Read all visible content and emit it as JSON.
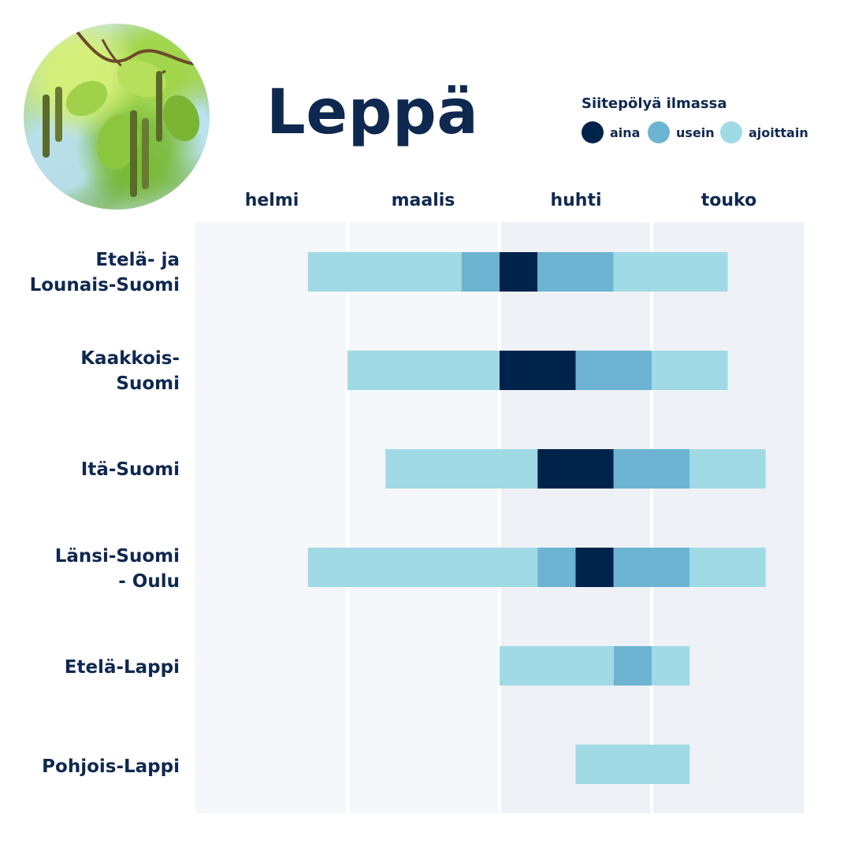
{
  "title": "Leppä",
  "image": {
    "description_icon": "alder-catkins-photo"
  },
  "legend": {
    "title": "Siitepölyä ilmassa",
    "items": [
      {
        "label": "aina",
        "color": "#00234b"
      },
      {
        "label": "usein",
        "color": "#6cb4d2"
      },
      {
        "label": "ajoittain",
        "color": "#a0dae5"
      }
    ]
  },
  "colors": {
    "aina": "#00234b",
    "usein": "#6cb4d2",
    "ajoittain": "#a0dae5",
    "band_light": "#f5f7fa",
    "band_dark": "#eef1f6",
    "text": "#0f2850"
  },
  "chart_data": {
    "type": "bar",
    "subtype": "timeline",
    "months": [
      "helmi",
      "maalis",
      "huhti",
      "touko"
    ],
    "x_unit": "month (1.0 = start of helmi, 5.0 = end of touko)",
    "xlim": [
      1,
      5
    ],
    "rows": [
      {
        "region": [
          "Etelä- ja",
          "Lounais-Suomi"
        ],
        "segments": [
          {
            "start": 1.74,
            "end": 2.75,
            "level": "ajoittain"
          },
          {
            "start": 2.75,
            "end": 3.0,
            "level": "usein"
          },
          {
            "start": 3.0,
            "end": 3.25,
            "level": "aina"
          },
          {
            "start": 3.25,
            "end": 3.75,
            "level": "usein"
          },
          {
            "start": 3.75,
            "end": 4.5,
            "level": "ajoittain"
          }
        ]
      },
      {
        "region": [
          "Kaakkois-",
          "Suomi"
        ],
        "segments": [
          {
            "start": 2.0,
            "end": 3.0,
            "level": "ajoittain"
          },
          {
            "start": 3.0,
            "end": 3.5,
            "level": "aina"
          },
          {
            "start": 3.5,
            "end": 4.0,
            "level": "usein"
          },
          {
            "start": 4.0,
            "end": 4.5,
            "level": "ajoittain"
          }
        ]
      },
      {
        "region": [
          "Itä-Suomi"
        ],
        "segments": [
          {
            "start": 2.25,
            "end": 3.25,
            "level": "ajoittain"
          },
          {
            "start": 3.25,
            "end": 3.75,
            "level": "aina"
          },
          {
            "start": 3.75,
            "end": 4.25,
            "level": "usein"
          },
          {
            "start": 4.25,
            "end": 4.75,
            "level": "ajoittain"
          }
        ]
      },
      {
        "region": [
          "Länsi-Suomi",
          "- Oulu"
        ],
        "segments": [
          {
            "start": 1.74,
            "end": 3.25,
            "level": "ajoittain"
          },
          {
            "start": 3.25,
            "end": 3.5,
            "level": "usein"
          },
          {
            "start": 3.5,
            "end": 3.75,
            "level": "aina"
          },
          {
            "start": 3.75,
            "end": 4.25,
            "level": "usein"
          },
          {
            "start": 4.25,
            "end": 4.75,
            "level": "ajoittain"
          }
        ]
      },
      {
        "region": [
          "Etelä-Lappi"
        ],
        "segments": [
          {
            "start": 3.0,
            "end": 3.75,
            "level": "ajoittain"
          },
          {
            "start": 3.75,
            "end": 4.0,
            "level": "usein"
          },
          {
            "start": 4.0,
            "end": 4.25,
            "level": "ajoittain"
          }
        ]
      },
      {
        "region": [
          "Pohjois-Lappi"
        ],
        "segments": [
          {
            "start": 3.5,
            "end": 4.25,
            "level": "ajoittain"
          }
        ]
      }
    ]
  }
}
